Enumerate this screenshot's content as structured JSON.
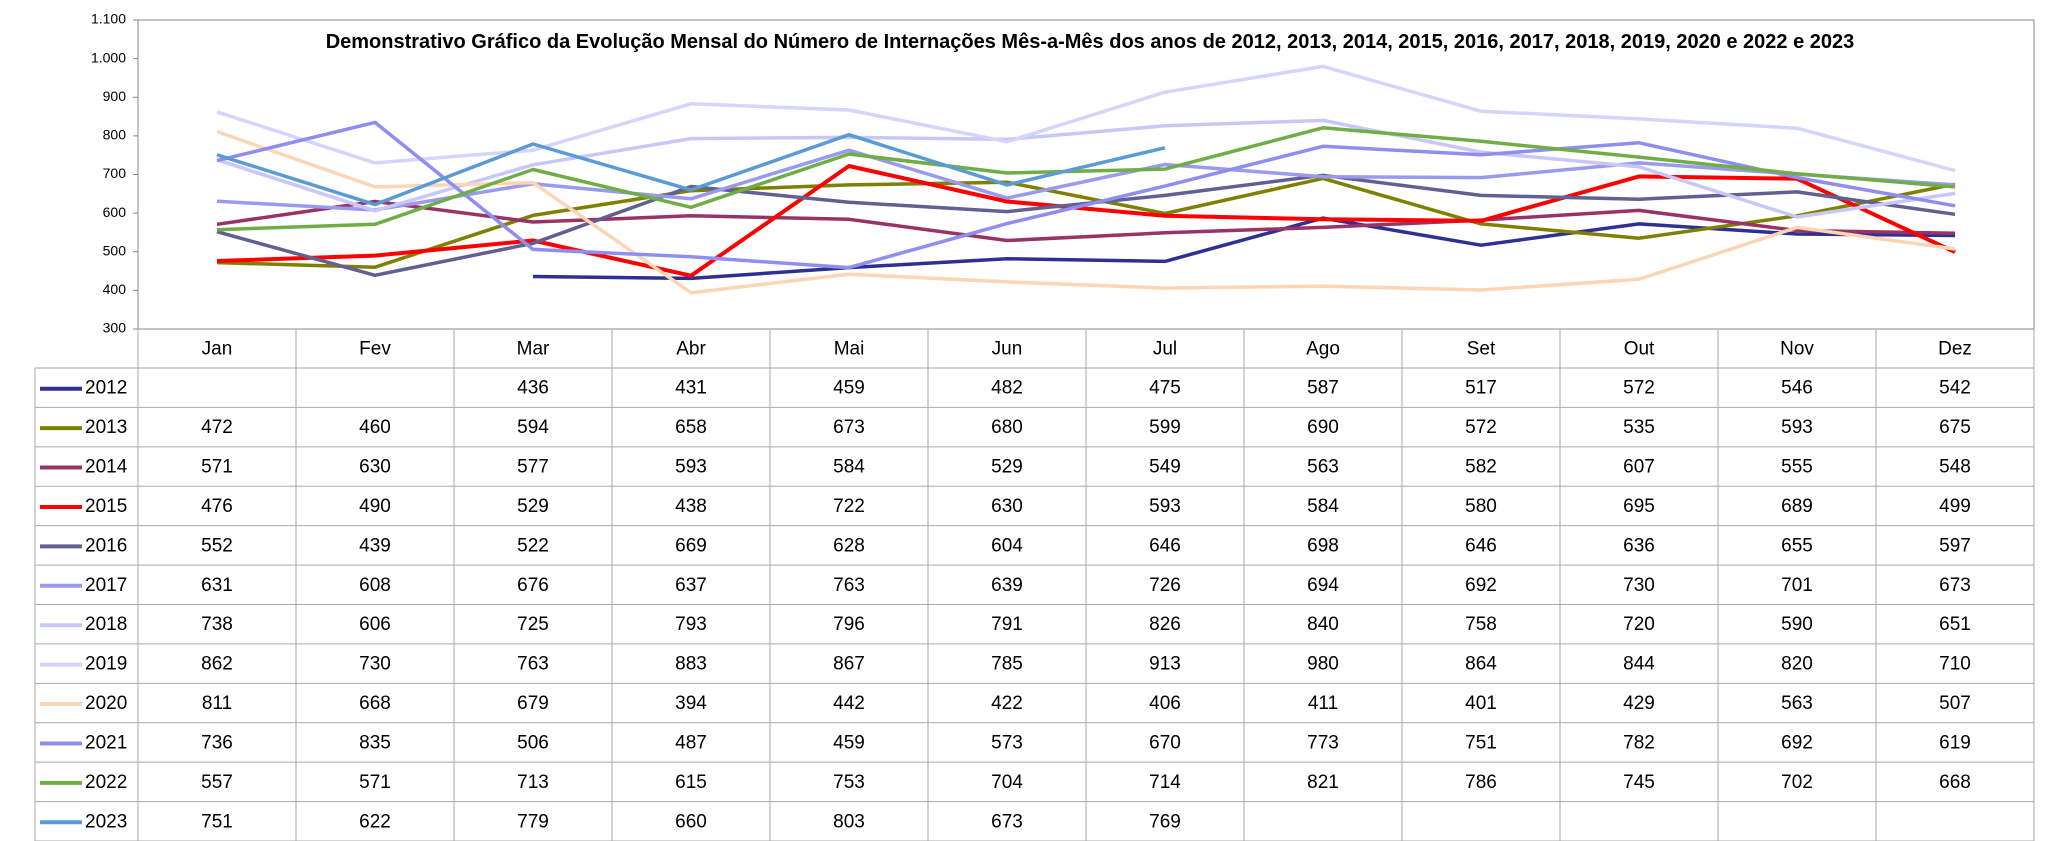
{
  "chart_data": {
    "type": "line",
    "title": "Demonstrativo Gráfico da Evolução Mensal do Número de Internações Mês-a-Mês dos anos de  2012, 2013, 2014, 2015, 2016, 2017, 2018, 2019, 2020 e 2022 e 2023",
    "categories": [
      "Jan",
      "Fev",
      "Mar",
      "Abr",
      "Mai",
      "Jun",
      "Jul",
      "Ago",
      "Set",
      "Out",
      "Nov",
      "Dez"
    ],
    "ylim": [
      300,
      1100
    ],
    "yticks": [
      300,
      400,
      500,
      600,
      700,
      800,
      900,
      {
        "value": 1000,
        "label": "1.000"
      },
      {
        "value": 1100,
        "label": "1.100"
      }
    ],
    "series": [
      {
        "name": "2012",
        "color": "#2e3192",
        "values": [
          null,
          null,
          436,
          431,
          459,
          482,
          475,
          587,
          517,
          572,
          546,
          542
        ]
      },
      {
        "name": "2013",
        "color": "#808000",
        "values": [
          472,
          460,
          594,
          658,
          673,
          680,
          599,
          690,
          572,
          535,
          593,
          675
        ]
      },
      {
        "name": "2014",
        "color": "#993366",
        "values": [
          571,
          630,
          577,
          593,
          584,
          529,
          549,
          563,
          582,
          607,
          555,
          548
        ]
      },
      {
        "name": "2015",
        "color": "#ff0000",
        "values": [
          476,
          490,
          529,
          438,
          722,
          630,
          593,
          584,
          580,
          695,
          689,
          499
        ]
      },
      {
        "name": "2016",
        "color": "#606092",
        "values": [
          552,
          439,
          522,
          669,
          628,
          604,
          646,
          698,
          646,
          636,
          655,
          597
        ]
      },
      {
        "name": "2017",
        "color": "#9999ee",
        "values": [
          631,
          608,
          676,
          637,
          763,
          639,
          726,
          694,
          692,
          730,
          701,
          673
        ]
      },
      {
        "name": "2018",
        "color": "#c8c8f8",
        "values": [
          738,
          606,
          725,
          793,
          796,
          791,
          826,
          840,
          758,
          720,
          590,
          651
        ]
      },
      {
        "name": "2019",
        "color": "#d4d4ff",
        "values": [
          862,
          730,
          763,
          883,
          867,
          785,
          913,
          980,
          864,
          844,
          820,
          710
        ]
      },
      {
        "name": "2020",
        "color": "#fcd5b4",
        "values": [
          811,
          668,
          679,
          394,
          442,
          422,
          406,
          411,
          401,
          429,
          563,
          507
        ]
      },
      {
        "name": "2021",
        "color": "#8e8ef0",
        "values": [
          736,
          835,
          506,
          487,
          459,
          573,
          670,
          773,
          751,
          782,
          692,
          619
        ]
      },
      {
        "name": "2022",
        "color": "#70ad47",
        "values": [
          557,
          571,
          713,
          615,
          753,
          704,
          714,
          821,
          786,
          745,
          702,
          668
        ]
      },
      {
        "name": "2023",
        "color": "#5b9bd5",
        "values": [
          751,
          622,
          779,
          660,
          803,
          673,
          769,
          null,
          null,
          null,
          null,
          null
        ]
      }
    ]
  }
}
